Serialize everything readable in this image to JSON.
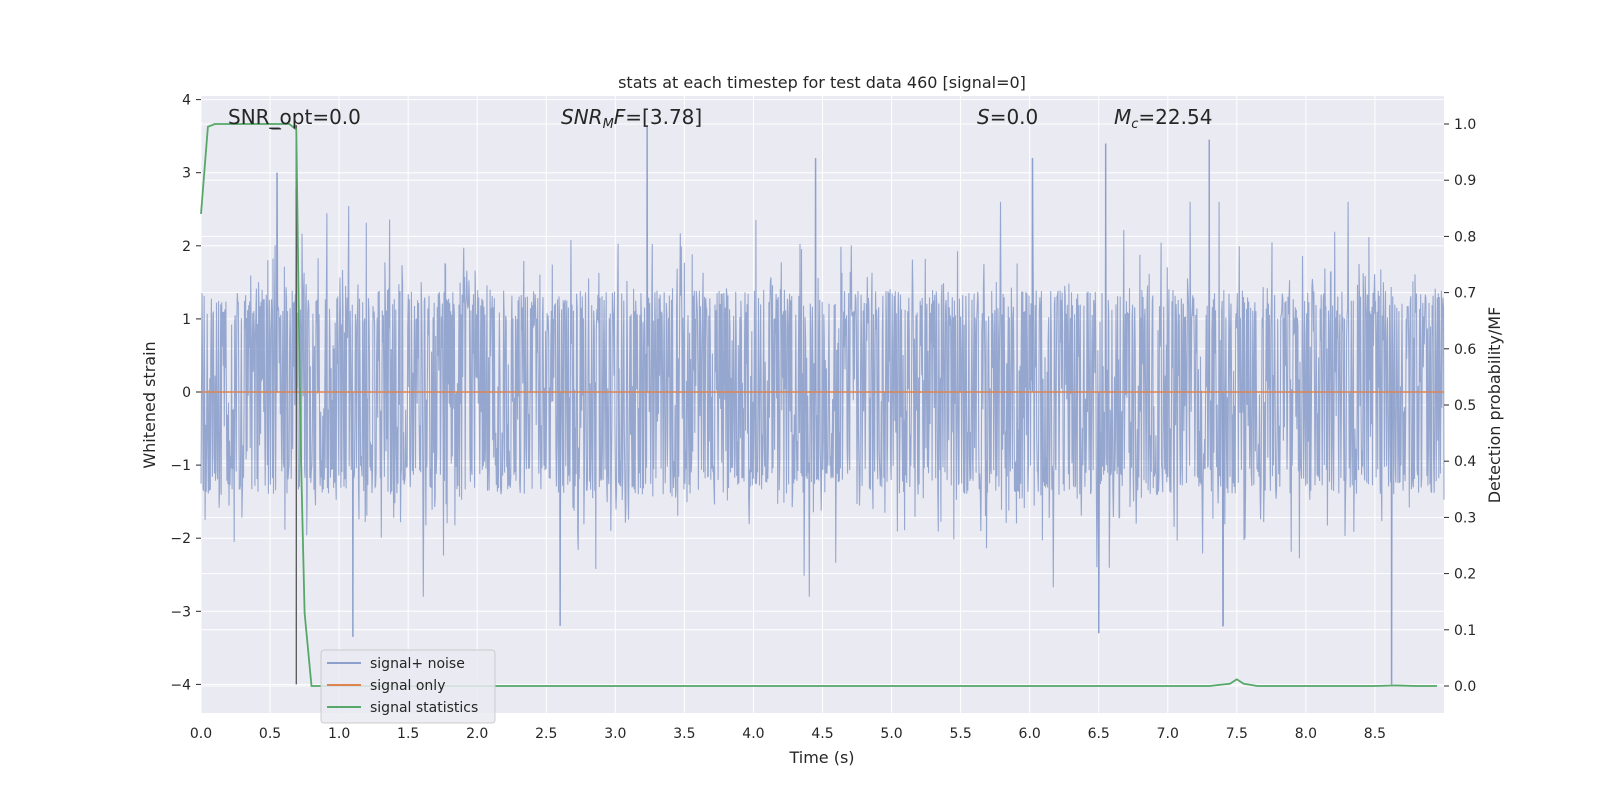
{
  "chart_data": {
    "type": "line",
    "title": "stats at each timestep for test data 460 [signal=0]",
    "xlabel": "Time (s)",
    "ylabel": "Whitened strain",
    "y2label": "Detection probability/MF",
    "xlim": [
      0.0,
      9.0
    ],
    "ylim": [
      -4.4,
      4.05
    ],
    "y2lim": [
      -0.048,
      1.04
    ],
    "x_ticks": [
      "0.0",
      "0.5",
      "1.0",
      "1.5",
      "2.0",
      "2.5",
      "3.0",
      "3.5",
      "4.0",
      "4.5",
      "5.0",
      "5.5",
      "6.0",
      "6.5",
      "7.0",
      "7.5",
      "8.0",
      "8.5"
    ],
    "y_ticks": [
      "4",
      "3",
      "2",
      "1",
      "0",
      "−1",
      "−2",
      "−3",
      "−4"
    ],
    "y2_ticks": [
      "1.0",
      "0.9",
      "0.8",
      "0.7",
      "0.6",
      "0.5",
      "0.4",
      "0.3",
      "0.2",
      "0.1",
      "0.0"
    ],
    "grid": true,
    "legend_position": "lower-left",
    "annotations": {
      "snr_opt": "SNR_opt=0.0",
      "snr_mf_sym": "SNR",
      "snr_mf_sub": "M",
      "snr_mf_rest": "F=[3.78]",
      "s_sym": "S",
      "s_rest": "=0.0",
      "mc_sym": "M",
      "mc_sub": "c",
      "mc_rest": "=22.54"
    },
    "marker": {
      "x": 0.69,
      "y_range": [
        -4.0,
        3.65
      ]
    },
    "series": [
      {
        "name": "signal+ noise",
        "color": "#8da0cb",
        "description_values": "whitened strain noise, roughly Gaussian, envelope about ±1.5 with spikes to ±3.6",
        "envelope_upper": 1.35,
        "envelope_lower": -1.4,
        "peaks": [
          [
            0.55,
            3.0
          ],
          [
            0.69,
            2.8
          ],
          [
            3.23,
            3.65
          ],
          [
            4.45,
            3.2
          ],
          [
            6.02,
            3.2
          ],
          [
            6.55,
            3.4
          ],
          [
            7.3,
            3.45
          ],
          [
            8.62,
            -4.0
          ],
          [
            1.1,
            -3.35
          ],
          [
            2.6,
            -3.2
          ],
          [
            6.5,
            -3.3
          ],
          [
            7.4,
            -3.2
          ]
        ]
      },
      {
        "name": "signal only",
        "color": "#dd8452",
        "x": [
          0.0,
          9.0
        ],
        "y": [
          0.0,
          0.0
        ]
      },
      {
        "name": "signal statistics",
        "color": "#55a868",
        "axis": "right",
        "x": [
          0.0,
          0.05,
          0.1,
          0.15,
          0.2,
          0.3,
          0.4,
          0.5,
          0.6,
          0.64,
          0.69,
          0.72,
          0.75,
          0.8,
          0.85,
          1.0,
          2.0,
          3.0,
          4.0,
          5.0,
          6.0,
          7.0,
          7.3,
          7.45,
          7.5,
          7.55,
          7.65,
          8.0,
          8.5,
          8.65,
          8.8,
          8.95
        ],
        "y": [
          0.84,
          0.995,
          1.0,
          1.0,
          1.0,
          1.0,
          1.0,
          1.0,
          1.0,
          1.0,
          0.99,
          0.45,
          0.13,
          0.0,
          0.0,
          0.0,
          0.0,
          0.0,
          0.0,
          0.0,
          0.0,
          0.0,
          0.0,
          0.004,
          0.012,
          0.004,
          0.0,
          0.0,
          0.0,
          0.001,
          0.0,
          0.0
        ]
      }
    ]
  }
}
